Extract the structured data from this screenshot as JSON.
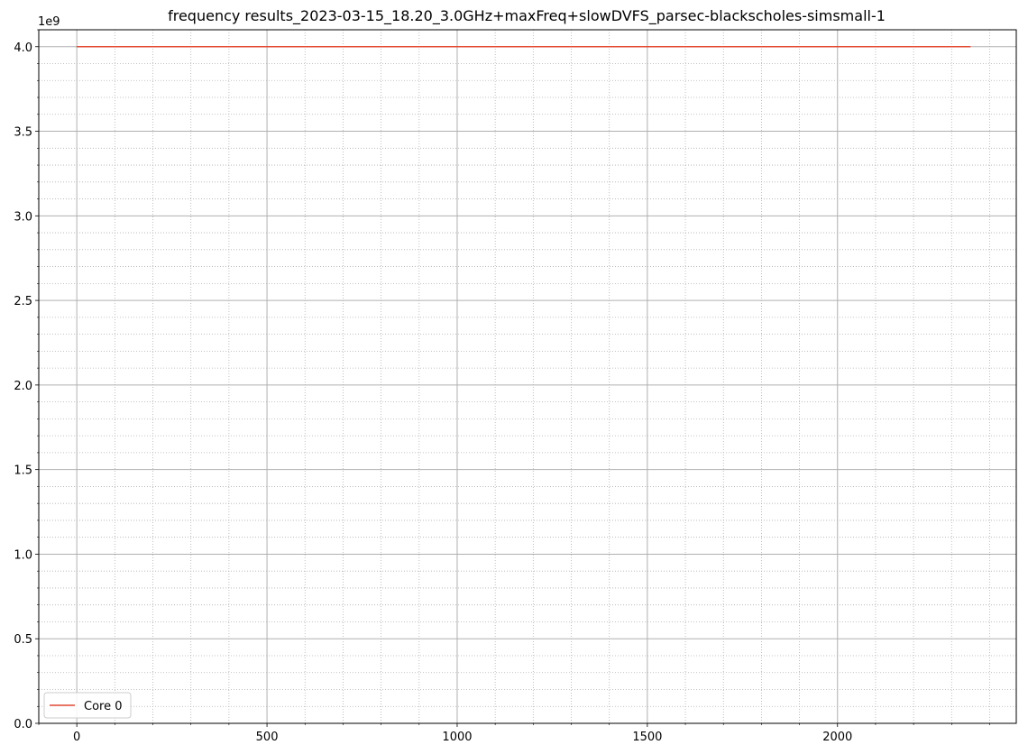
{
  "chart_data": {
    "type": "line",
    "title": "frequency results_2023-03-15_18.20_3.0GHz+maxFreq+slowDVFS_parsec-blackscholes-simsmall-1",
    "xlabel": "",
    "ylabel": "",
    "y_offset_label": "1e9",
    "xlim": [
      -100,
      2470
    ],
    "ylim": [
      0,
      4100000000
    ],
    "x_major_ticks": [
      0,
      500,
      1000,
      1500,
      2000
    ],
    "x_tick_labels": [
      "0",
      "500",
      "1000",
      "1500",
      "2000"
    ],
    "x_minor_step": 100,
    "y_major_ticks": [
      0,
      500000000,
      1000000000,
      1500000000,
      2000000000,
      2500000000,
      3000000000,
      3500000000,
      4000000000
    ],
    "y_tick_labels": [
      "0.0",
      "0.5",
      "1.0",
      "1.5",
      "2.0",
      "2.5",
      "3.0",
      "3.5",
      "4.0"
    ],
    "y_minor_step": 100000000,
    "grid": "major solid, minor dotted",
    "legend_position": "lower-left",
    "series": [
      {
        "name": "Core 0",
        "color": "#e24a33",
        "x": [
          0,
          2350
        ],
        "y": [
          4000000000,
          4000000000
        ]
      }
    ]
  }
}
